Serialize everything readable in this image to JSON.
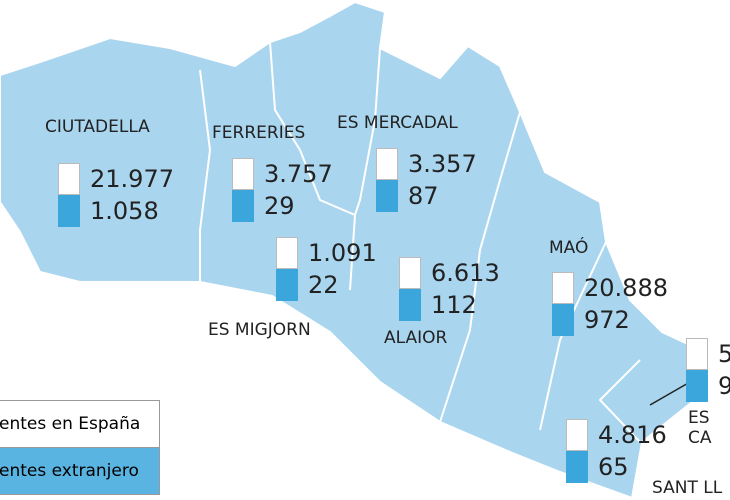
{
  "title": null,
  "regions": [
    {
      "name": "CIUTADELLA",
      "spain": "21.977",
      "abroad": "1.058"
    },
    {
      "name": "FERRERIES",
      "spain": "3.757",
      "abroad": "29"
    },
    {
      "name": "ES MERCADAL",
      "spain": "3.357",
      "abroad": "87"
    },
    {
      "name": "ES MIGJORN",
      "spain": "1.091",
      "abroad": "22"
    },
    {
      "name": "ALAIOR",
      "spain": "6.613",
      "abroad": "112"
    },
    {
      "name": "MAÓ",
      "spain": "20.888",
      "abroad": "972"
    },
    {
      "name": "ES CA",
      "spain": "5",
      "abroad": "9"
    },
    {
      "name": "SANT LL",
      "spain": "4.816",
      "abroad": "65"
    }
  ],
  "legend": {
    "spain": "entes en España",
    "abroad": "entes extranjero"
  }
}
